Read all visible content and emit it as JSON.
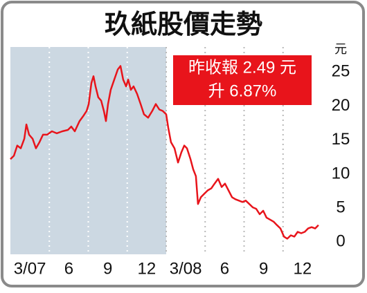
{
  "chart_data": {
    "type": "line",
    "title": "玖紙股價走勢",
    "y_unit": "元",
    "annotation": [
      "昨收報 2.49 元",
      "升 6.87%"
    ],
    "color": "#e8141b",
    "shade_x": [
      0,
      12
    ],
    "grid": true,
    "xlim": [
      0,
      24
    ],
    "ylim": [
      -1.8,
      28.7
    ],
    "xticks": [
      {
        "value": 0,
        "label": "3/07"
      },
      {
        "value": 3,
        "label": "6"
      },
      {
        "value": 6,
        "label": "9"
      },
      {
        "value": 9,
        "label": "12"
      },
      {
        "value": 12,
        "label": "3/08"
      },
      {
        "value": 15,
        "label": "6"
      },
      {
        "value": 18,
        "label": "9"
      },
      {
        "value": 21,
        "label": "12"
      }
    ],
    "yticks": [
      0,
      5,
      10,
      15,
      20,
      25
    ],
    "x": [
      0,
      0.27,
      0.53,
      0.8,
      1.07,
      1.23,
      1.44,
      1.71,
      1.97,
      2.24,
      2.51,
      2.83,
      3.2,
      3.57,
      4,
      4.43,
      4.69,
      4.96,
      5.33,
      5.6,
      5.87,
      6.03,
      6.24,
      6.4,
      6.56,
      6.77,
      6.99,
      7.2,
      7.36,
      7.52,
      7.73,
      8,
      8.27,
      8.48,
      8.69,
      8.91,
      9.07,
      9.28,
      9.49,
      9.76,
      10.03,
      10.29,
      10.61,
      10.93,
      11.2,
      11.47,
      11.73,
      12,
      12.16,
      12.37,
      12.64,
      12.91,
      13.17,
      13.39,
      13.6,
      13.87,
      14.08,
      14.29,
      14.45,
      14.67,
      14.93,
      15.2,
      15.47,
      15.73,
      16,
      16.27,
      16.53,
      16.8,
      17.07,
      17.33,
      17.6,
      17.87,
      18.13,
      18.4,
      18.67,
      18.93,
      19.2,
      19.47,
      19.73,
      20,
      20.27,
      20.53,
      20.8,
      21.07,
      21.33,
      21.6,
      21.87,
      22.13,
      22.4,
      22.67,
      22.93,
      23.2,
      23.47,
      23.73
    ],
    "values": [
      12.2,
      12.7,
      14.2,
      13.8,
      15.2,
      17.3,
      15.8,
      15.2,
      13.8,
      14.7,
      15.8,
      15.8,
      16.3,
      16.0,
      16.3,
      16.5,
      17.0,
      16.3,
      17.8,
      18.5,
      19.3,
      20.3,
      23.4,
      24.4,
      22.9,
      21.3,
      20.8,
      19.3,
      17.8,
      20.3,
      22.4,
      23.9,
      25.4,
      25.9,
      23.9,
      22.9,
      23.9,
      22.4,
      22.9,
      21.8,
      20.3,
      18.8,
      18.3,
      19.3,
      20.3,
      19.5,
      19.3,
      18.8,
      16.8,
      14.7,
      13.8,
      11.7,
      13.2,
      14.2,
      13.8,
      12.2,
      10.7,
      9.7,
      5.6,
      6.6,
      7.1,
      7.6,
      7.9,
      8.6,
      9.3,
      8.1,
      8.6,
      7.6,
      6.6,
      6.3,
      6.1,
      5.9,
      6.1,
      5.6,
      5.1,
      4.9,
      4.1,
      4.6,
      3.6,
      3.3,
      3.0,
      2.5,
      2.0,
      0.8,
      0.5,
      1.0,
      0.8,
      1.5,
      1.3,
      1.5,
      2.0,
      2.2,
      2.0,
      2.5
    ]
  }
}
